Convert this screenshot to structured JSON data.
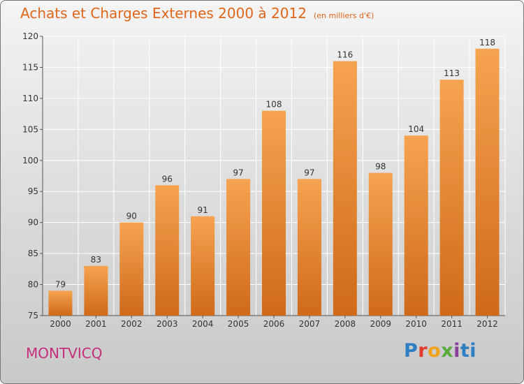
{
  "header": {
    "title": "Achats et Charges Externes 2000 à 2012",
    "subtitle": "(en milliers d'€)"
  },
  "footer": {
    "town": "MONTVICQ",
    "logo_letters": [
      "P",
      "r",
      "o",
      "x",
      "i",
      "ti"
    ]
  },
  "colors": {
    "title": "#e0661b",
    "town": "#c42f7d",
    "bar_top": "#f6a34f",
    "bar_bottom": "#cf6a1a"
  },
  "chart_data": {
    "type": "bar",
    "title": "Achats et Charges Externes 2000 à 2012",
    "subtitle": "(en milliers d'€)",
    "categories": [
      "2000",
      "2001",
      "2002",
      "2003",
      "2004",
      "2005",
      "2006",
      "2007",
      "2008",
      "2009",
      "2010",
      "2011",
      "2012"
    ],
    "values": [
      79,
      83,
      90,
      96,
      91,
      97,
      108,
      97,
      116,
      98,
      104,
      113,
      118
    ],
    "ylim": [
      75,
      120
    ],
    "yticks": [
      75,
      80,
      85,
      90,
      95,
      100,
      105,
      110,
      115,
      120
    ],
    "grid": true
  }
}
